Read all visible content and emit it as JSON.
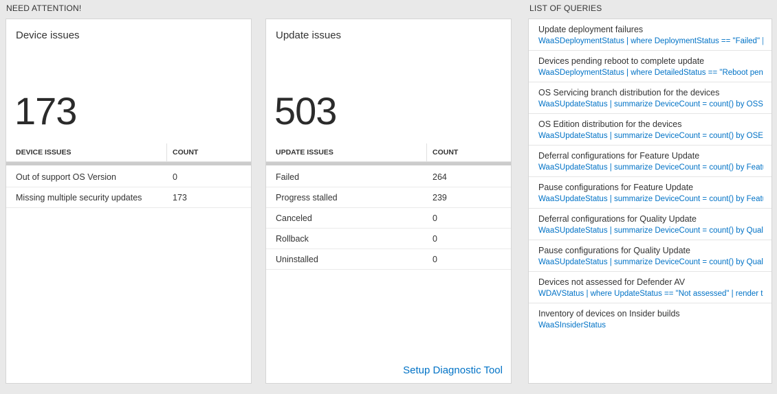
{
  "colors": {
    "link_blue": "#0072c6",
    "page_background": "#e9e9e9"
  },
  "need_attention": {
    "header": "NEED ATTENTION!",
    "cards": [
      {
        "title": "Device issues",
        "big_number": "173",
        "table": {
          "columns": [
            "DEVICE ISSUES",
            "COUNT"
          ],
          "rows": [
            {
              "label": "Out of support OS Version",
              "count": "0"
            },
            {
              "label": "Missing multiple security updates",
              "count": "173"
            }
          ]
        }
      },
      {
        "title": "Update issues",
        "big_number": "503",
        "table": {
          "columns": [
            "UPDATE ISSUES",
            "COUNT"
          ],
          "rows": [
            {
              "label": "Failed",
              "count": "264"
            },
            {
              "label": "Progress stalled",
              "count": "239"
            },
            {
              "label": "Canceled",
              "count": "0"
            },
            {
              "label": "Rollback",
              "count": "0"
            },
            {
              "label": "Uninstalled",
              "count": "0"
            }
          ]
        },
        "footer_link": "Setup Diagnostic Tool"
      }
    ]
  },
  "queries": {
    "header": "LIST OF QUERIES",
    "items": [
      {
        "title": "Update deployment failures",
        "query": "WaaSDeploymentStatus | where DeploymentStatus == \"Failed\" |…"
      },
      {
        "title": "Devices pending reboot to complete update",
        "query": "WaaSDeploymentStatus | where DetailedStatus == \"Reboot pend…"
      },
      {
        "title": "OS Servicing branch distribution for the devices",
        "query": "WaaSUpdateStatus | summarize DeviceCount = count() by OSSer…"
      },
      {
        "title": "OS Edition distribution for the devices",
        "query": "WaaSUpdateStatus | summarize DeviceCount = count() by OSEdit…"
      },
      {
        "title": "Deferral configurations for Feature Update",
        "query": "WaaSUpdateStatus | summarize DeviceCount = count() by Featur…"
      },
      {
        "title": "Pause configurations for Feature Update",
        "query": "WaaSUpdateStatus | summarize DeviceCount = count() by Featur…"
      },
      {
        "title": "Deferral configurations for Quality Update",
        "query": "WaaSUpdateStatus | summarize DeviceCount = count() by Qualit…"
      },
      {
        "title": "Pause configurations for Quality Update",
        "query": "WaaSUpdateStatus | summarize DeviceCount = count() by Qualit…"
      },
      {
        "title": "Devices not assessed for Defender AV",
        "query": "WDAVStatus | where UpdateStatus == \"Not assessed\" | render ta…"
      },
      {
        "title": "Inventory of devices on Insider builds",
        "query": "WaaSInsiderStatus"
      }
    ]
  }
}
